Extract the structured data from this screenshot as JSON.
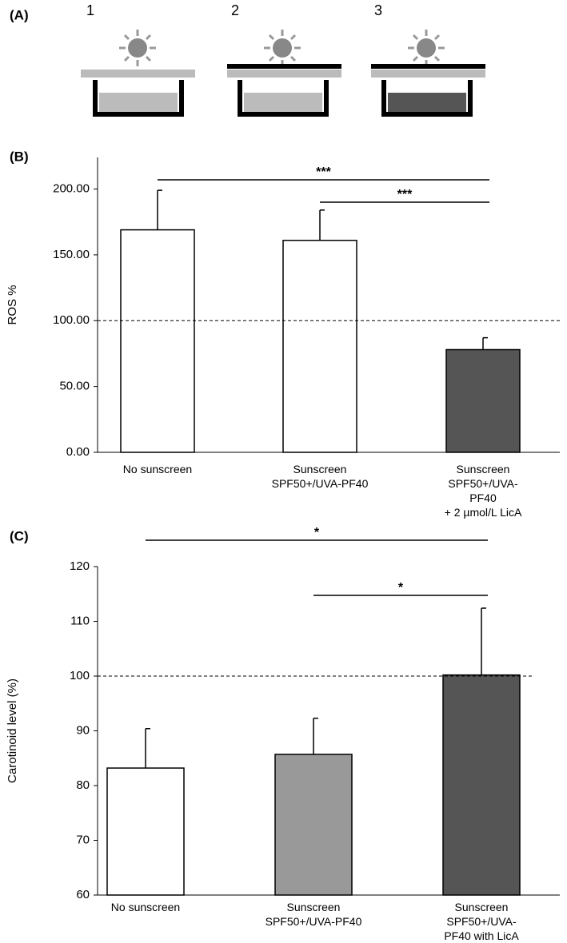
{
  "diagram": {
    "panel": "(A)",
    "steps": [
      "1",
      "2",
      "3"
    ]
  },
  "chart_data": [
    {
      "type": "bar",
      "panel": "(B)",
      "ylabel": "ROS %",
      "categories": [
        "No sunscreen",
        "Sunscreen\nSPF50+/UVA-PF40",
        "Sunscreen\nSPF50+/UVA-PF40\n+ 2 µmol/L LicA"
      ],
      "values": [
        169,
        161,
        78
      ],
      "errors": [
        30,
        23,
        9
      ],
      "colors": [
        "#ffffff",
        "#ffffff",
        "#555555"
      ],
      "ylim": [
        0,
        224
      ],
      "yticks": [
        {
          "value": 0,
          "label": "0.00"
        },
        {
          "value": 50,
          "label": "50.00"
        },
        {
          "value": 100,
          "label": "100.00"
        },
        {
          "value": 150,
          "label": "150.00"
        },
        {
          "value": 200,
          "label": "200.00"
        }
      ],
      "reference": 100,
      "significance": [
        {
          "text": "***",
          "between": [
            0,
            2
          ]
        },
        {
          "text": "***",
          "between": [
            1,
            2
          ]
        }
      ]
    },
    {
      "type": "bar",
      "panel": "(C)",
      "ylabel": "Carotinoid level (%)",
      "categories": [
        "No sunscreen",
        "Sunscreen\nSPF50+/UVA-PF40",
        "Sunscreen\nSPF50+/UVA-PF40 with LicA"
      ],
      "values": [
        83.2,
        85.7,
        100.2
      ],
      "errors": [
        7.2,
        6.6,
        12.2
      ],
      "colors": [
        "#ffffff",
        "#999999",
        "#555555"
      ],
      "ylim": [
        60,
        120
      ],
      "yticks": [
        60,
        70,
        80,
        90,
        100,
        110,
        120
      ],
      "reference": 100,
      "significance": [
        {
          "text": "*",
          "between": [
            0,
            2
          ]
        },
        {
          "text": "*",
          "between": [
            1,
            2
          ]
        }
      ]
    }
  ]
}
